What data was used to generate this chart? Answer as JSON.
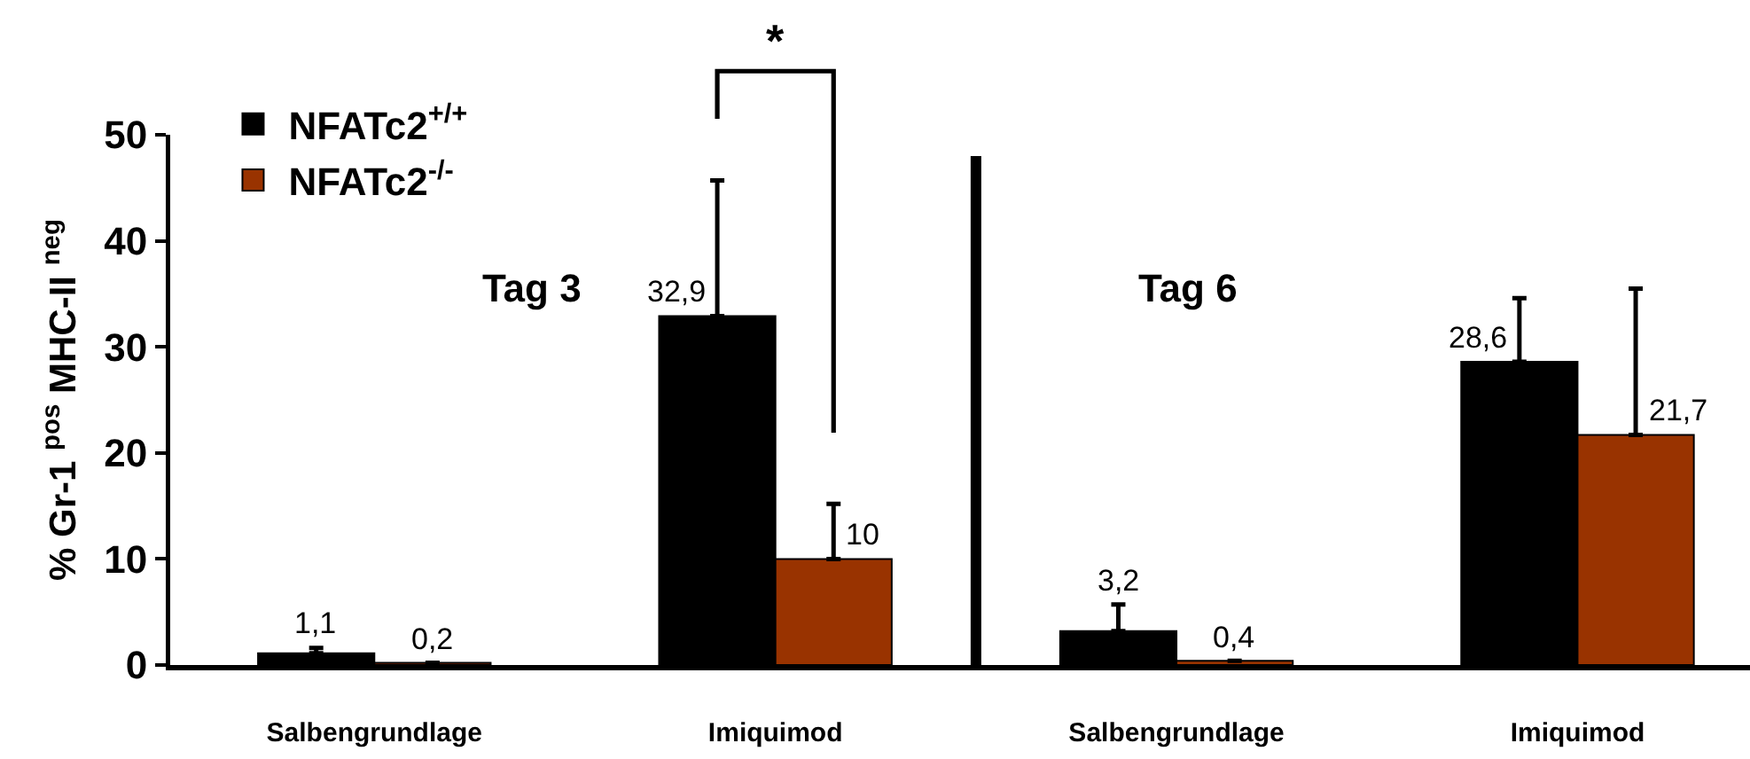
{
  "chart_data": {
    "type": "bar",
    "ylabel": "% Gr-1 $^{pos}$ MHC-II $^{neg}$",
    "categories": [
      "Salbengrundlage",
      "Imiquimod",
      "Salbengrundlage",
      "Imiquimod"
    ],
    "series": [
      {
        "name": "NFATc2$^{+/+}$",
        "color": "#000000",
        "values": [
          1.1,
          32.9,
          3.2,
          28.6
        ],
        "errors": [
          [
            1.1,
            1.6
          ],
          [
            32.9,
            45.7
          ],
          [
            3.2,
            5.7
          ],
          [
            28.6,
            34.6
          ]
        ],
        "value_labels": [
          "1,1",
          "32,9",
          "3,2",
          "28,6"
        ]
      },
      {
        "name": "NFATc2$^{-/-}$",
        "color": "#993300",
        "values": [
          0.2,
          10,
          0.4,
          21.7
        ],
        "errors": [
          null,
          [
            10,
            15.2
          ],
          null,
          [
            21.7,
            35.5
          ]
        ],
        "value_labels": [
          "0,2",
          "10",
          "0,4",
          "21,7"
        ]
      }
    ],
    "ylim": [
      0,
      50
    ],
    "yticks": [
      0,
      10,
      20,
      30,
      40,
      50
    ],
    "grid": false,
    "legend": "top left",
    "annotations": [
      "*",
      "Tag 3",
      "Tag 6"
    ]
  }
}
